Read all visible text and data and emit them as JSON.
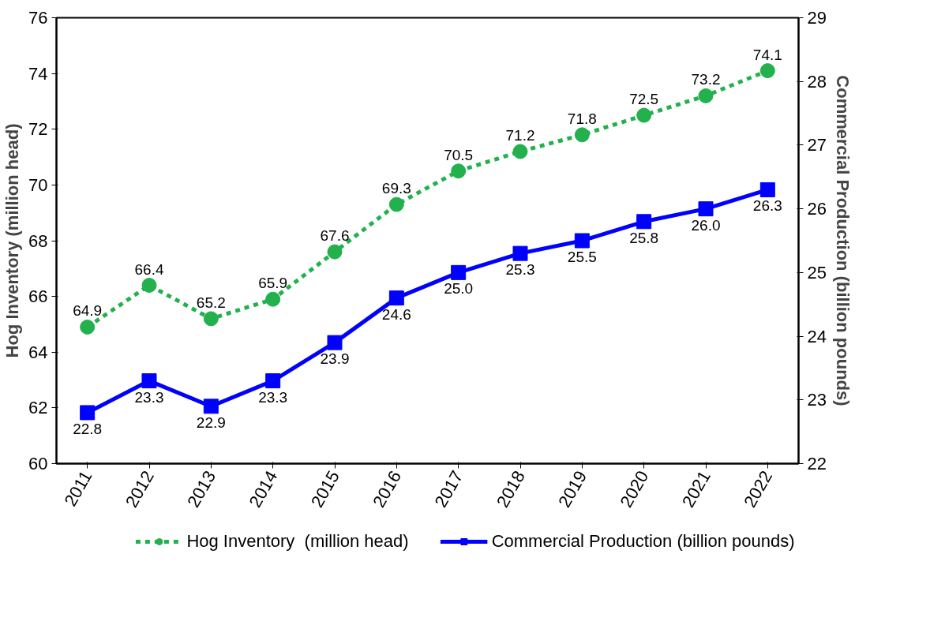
{
  "chart_data": {
    "type": "line",
    "categories": [
      "2011",
      "2012",
      "2013",
      "2014",
      "2015",
      "2016",
      "2017",
      "2018",
      "2019",
      "2020",
      "2021",
      "2022"
    ],
    "series": [
      {
        "name": "Hog Inventory  (million head)",
        "color": "#22b14c",
        "marker": "circle",
        "line_style": "dashed",
        "values": [
          64.9,
          66.4,
          65.2,
          65.9,
          67.6,
          69.3,
          70.5,
          71.2,
          71.8,
          72.5,
          73.2,
          74.1
        ],
        "value_labels": [
          "64.9",
          "66.4",
          "65.2",
          "65.9",
          "67.6",
          "69.3",
          "70.5",
          "71.2",
          "71.8",
          "72.5",
          "73.2",
          "74.1"
        ]
      },
      {
        "name": "Commercial Production (billion pounds)",
        "color": "#0000ff",
        "marker": "square",
        "line_style": "solid",
        "axis": "y2",
        "values": [
          22.8,
          23.3,
          22.9,
          23.3,
          23.9,
          24.6,
          25.0,
          25.3,
          25.5,
          25.8,
          26.0,
          26.3
        ],
        "value_labels": [
          "22.8",
          "23.3",
          "22.9",
          "23.3",
          "23.9",
          "24.6",
          "25.0",
          "25.3",
          "25.5",
          "25.8",
          "26.0",
          "26.3"
        ]
      }
    ],
    "ylabel": "Hog Inventory (million head)",
    "y2label": "Commercial Production (billion pounds)",
    "ylim": [
      60,
      76
    ],
    "yticks": [
      60,
      62,
      64,
      66,
      68,
      70,
      72,
      74,
      76
    ],
    "y2lim": [
      22,
      29
    ],
    "y2ticks": [
      22,
      23,
      24,
      25,
      26,
      27,
      28,
      29
    ],
    "data_labels": true,
    "legend": "bottom",
    "grid": false
  }
}
